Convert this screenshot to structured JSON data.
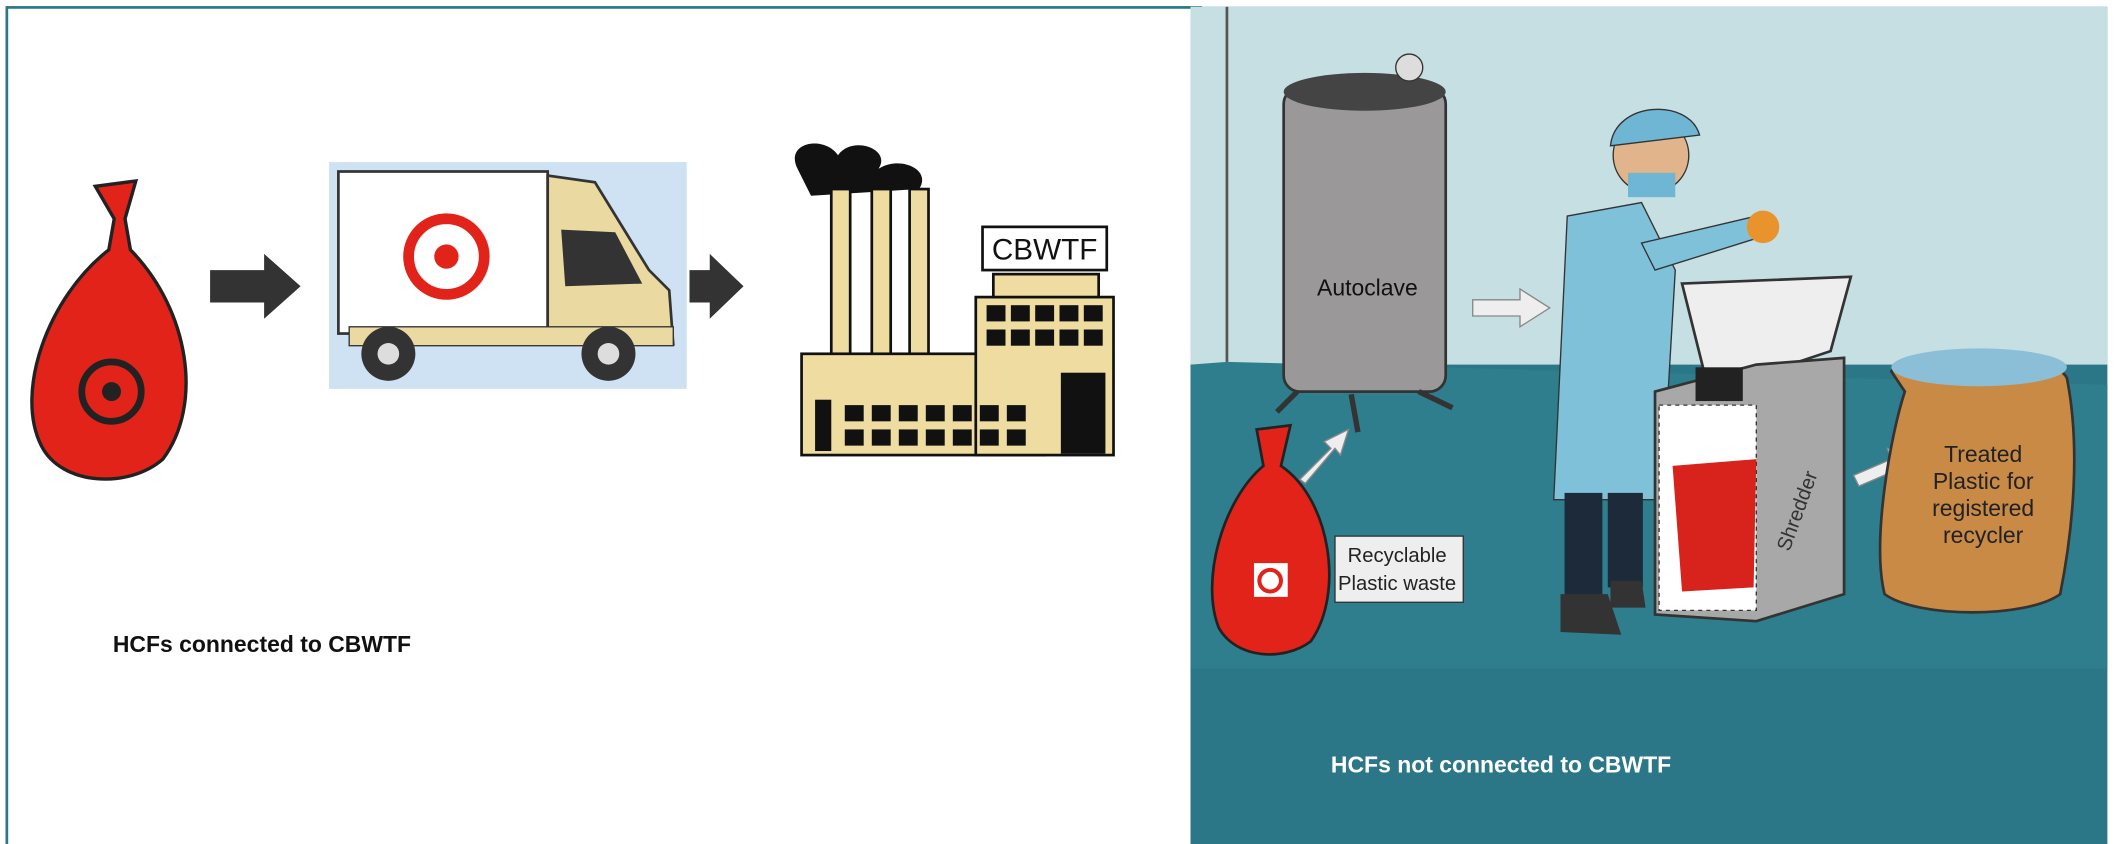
{
  "left_panel": {
    "caption": "HCFs connected to CBWTF",
    "factory_sign": "CBWTF"
  },
  "right_panel": {
    "caption": "HCFs not connected to CBWTF",
    "autoclave_label": "Autoclave",
    "waste_label": [
      "Recyclable",
      "Plastic waste"
    ],
    "shredder_label": "Shredder",
    "bag_label": [
      "Treated",
      "Plastic for",
      "registered",
      "recycler"
    ]
  }
}
